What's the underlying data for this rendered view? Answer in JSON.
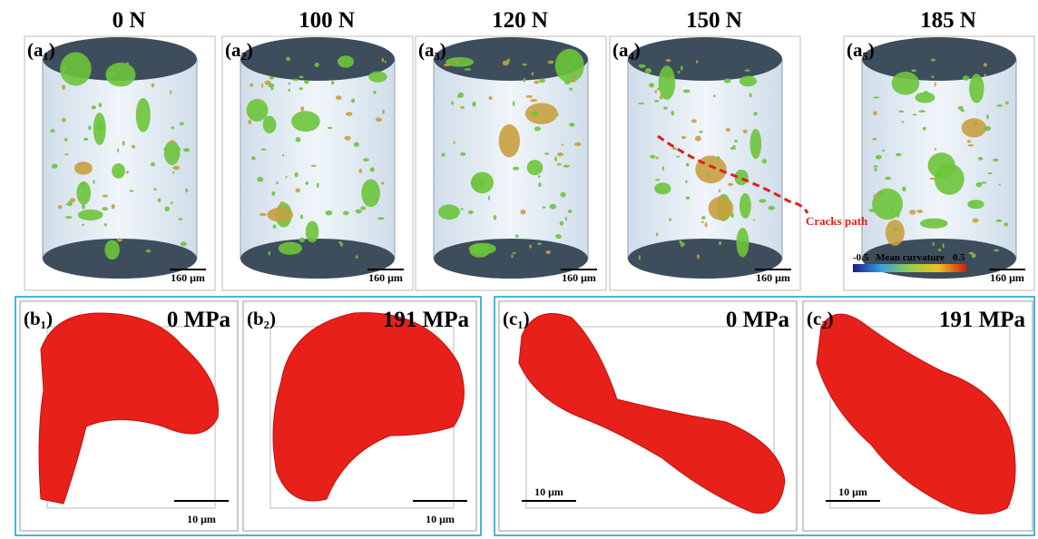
{
  "top": {
    "panels": [
      {
        "load": "0 N",
        "label": "(a₁)",
        "scale_bar": "160 μm"
      },
      {
        "load": "100 N",
        "label": "(a₂)",
        "scale_bar": "160 μm"
      },
      {
        "load": "120 N",
        "label": "(a₃)",
        "scale_bar": "160 μm"
      },
      {
        "load": "150 N",
        "label": "(a₄)",
        "scale_bar": "160 μm"
      },
      {
        "load": "185 N",
        "label": "(a₅)",
        "scale_bar": "160 μm"
      }
    ],
    "crack_annotation": "Cracks path",
    "colorbar": {
      "min": "-0.5",
      "title": "Mean curvature",
      "max": "0.5"
    }
  },
  "bottom": {
    "groups": [
      {
        "panels": [
          {
            "label": "(b₁)",
            "stress": "0 MPa",
            "scale_bar": "10 μm"
          },
          {
            "label": "(b₂)",
            "stress": "191 MPa",
            "scale_bar": "10 μm"
          }
        ]
      },
      {
        "panels": [
          {
            "label": "(c₁)",
            "stress": "0 MPa",
            "scale_bar": "10 μm"
          },
          {
            "label": "(c₂)",
            "stress": "191 MPa",
            "scale_bar": "10 μm"
          }
        ]
      }
    ]
  }
}
